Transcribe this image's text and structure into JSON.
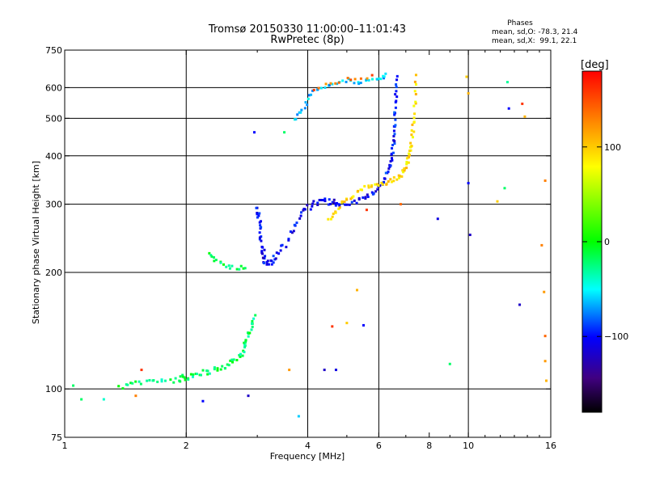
{
  "chart_data": {
    "type": "scatter",
    "title": "Tromsø 20150330 11:00:00–11:01:43",
    "subtitle": "RwPretec (8p)",
    "xlabel": "Frequency [MHz]",
    "ylabel": "Stationary phase Virtual Height [km]",
    "x_scale": "log",
    "y_scale": "log",
    "xlim": [
      1,
      16
    ],
    "ylim": [
      75,
      750
    ],
    "x_ticks": [
      1,
      2,
      4,
      6,
      8,
      10,
      16
    ],
    "x_tick_labels": [
      "1",
      "2",
      "4",
      "6",
      "8",
      "10",
      "16"
    ],
    "y_ticks": [
      75,
      100,
      200,
      300,
      400,
      500,
      600,
      750
    ],
    "y_tick_labels": [
      "75",
      "100",
      "200",
      "300",
      "400",
      "500",
      "600",
      "750"
    ],
    "grid_x": [
      2,
      4,
      6,
      10
    ],
    "grid_y": [
      100,
      200,
      300,
      400,
      500,
      600
    ],
    "phases": {
      "title": "Phases",
      "line_o": "mean, sd,O: -78.3, 21.4",
      "line_x": "mean, sd,X:  99.1, 22.1"
    },
    "colorbar": {
      "label": "[deg]",
      "range": [
        -180,
        180
      ],
      "ticks": [
        100,
        0,
        -100
      ],
      "tick_labels": [
        "100",
        "0",
        "−100"
      ],
      "colors": [
        "#ff0000",
        "#ff8000",
        "#ffff00",
        "#00ff00",
        "#00ffff",
        "#0000ff",
        "#400080",
        "#000000"
      ]
    },
    "traces": [
      {
        "name": "",
        "phase": -20,
        "jitter": 0.018,
        "density": 10,
        "points": [
          [
            1.35,
            101
          ],
          [
            1.6,
            104
          ],
          [
            1.9,
            106
          ],
          [
            2.05,
            108
          ],
          [
            2.3,
            111
          ],
          [
            2.55,
            115
          ],
          [
            2.75,
            124
          ],
          [
            2.85,
            137
          ],
          [
            2.95,
            155
          ]
        ]
      },
      {
        "name": "",
        "phase": -15,
        "jitter": 0.012,
        "density": 6,
        "points": [
          [
            2.25,
            225
          ],
          [
            2.4,
            212
          ],
          [
            2.6,
            206
          ],
          [
            2.85,
            206
          ]
        ]
      },
      {
        "name": "",
        "phase": -105,
        "jitter": 0.02,
        "density": 10,
        "points": [
          [
            3.0,
            300
          ],
          [
            3.05,
            265
          ],
          [
            3.1,
            225
          ],
          [
            3.15,
            210
          ],
          [
            3.3,
            215
          ],
          [
            3.6,
            245
          ],
          [
            3.9,
            290
          ],
          [
            4.3,
            305
          ],
          [
            4.8,
            302
          ]
        ]
      },
      {
        "name": "",
        "phase": -100,
        "jitter": 0.012,
        "density": 10,
        "points": [
          [
            4.5,
            300
          ],
          [
            5.2,
            303
          ],
          [
            5.8,
            320
          ],
          [
            6.2,
            345
          ],
          [
            6.45,
            390
          ],
          [
            6.55,
            440
          ],
          [
            6.6,
            530
          ],
          [
            6.65,
            645
          ]
        ]
      },
      {
        "name": "",
        "phase": 95,
        "jitter": 0.012,
        "density": 10,
        "points": [
          [
            4.5,
            270
          ],
          [
            4.9,
            305
          ],
          [
            5.5,
            330
          ],
          [
            6.2,
            338
          ],
          [
            6.8,
            355
          ],
          [
            7.05,
            380
          ],
          [
            7.2,
            420
          ],
          [
            7.35,
            500
          ],
          [
            7.4,
            640
          ]
        ]
      },
      {
        "name": "",
        "phase": -60,
        "jitter": 0.012,
        "density": 6,
        "points": [
          [
            3.7,
            495
          ],
          [
            3.9,
            530
          ],
          [
            4.1,
            580
          ],
          [
            4.5,
            605
          ],
          [
            5.0,
            625
          ],
          [
            5.5,
            620
          ],
          [
            6.0,
            630
          ],
          [
            6.3,
            650
          ]
        ]
      },
      {
        "name": "",
        "phase": 140,
        "jitter": 0.01,
        "density": 4,
        "points": [
          [
            4.1,
            590
          ],
          [
            4.6,
            615
          ],
          [
            5.2,
            635
          ],
          [
            5.8,
            640
          ]
        ]
      }
    ],
    "isolated_points": [
      {
        "x": 1.05,
        "y": 102,
        "phase": -20
      },
      {
        "x": 1.1,
        "y": 94,
        "phase": -20
      },
      {
        "x": 1.25,
        "y": 94,
        "phase": -40
      },
      {
        "x": 1.5,
        "y": 96,
        "phase": 130
      },
      {
        "x": 1.55,
        "y": 112,
        "phase": 160
      },
      {
        "x": 2.2,
        "y": 93,
        "phase": -100
      },
      {
        "x": 2.85,
        "y": 96,
        "phase": -120
      },
      {
        "x": 2.95,
        "y": 460,
        "phase": -100
      },
      {
        "x": 3.5,
        "y": 460,
        "phase": -20
      },
      {
        "x": 3.8,
        "y": 85,
        "phase": -60
      },
      {
        "x": 3.6,
        "y": 112,
        "phase": 120
      },
      {
        "x": 4.4,
        "y": 112,
        "phase": -120
      },
      {
        "x": 4.7,
        "y": 112,
        "phase": -110
      },
      {
        "x": 4.6,
        "y": 145,
        "phase": 160
      },
      {
        "x": 5.0,
        "y": 148,
        "phase": 100
      },
      {
        "x": 5.3,
        "y": 180,
        "phase": 110
      },
      {
        "x": 5.5,
        "y": 146,
        "phase": -100
      },
      {
        "x": 5.6,
        "y": 290,
        "phase": 160
      },
      {
        "x": 6.8,
        "y": 300,
        "phase": 140
      },
      {
        "x": 8.4,
        "y": 275,
        "phase": -110
      },
      {
        "x": 9.0,
        "y": 116,
        "phase": -20
      },
      {
        "x": 9.9,
        "y": 640,
        "phase": 100
      },
      {
        "x": 10.0,
        "y": 580,
        "phase": 110
      },
      {
        "x": 10.0,
        "y": 340,
        "phase": -100
      },
      {
        "x": 10.1,
        "y": 250,
        "phase": -120
      },
      {
        "x": 11.8,
        "y": 305,
        "phase": 100
      },
      {
        "x": 12.3,
        "y": 330,
        "phase": -20
      },
      {
        "x": 12.5,
        "y": 620,
        "phase": -30
      },
      {
        "x": 12.6,
        "y": 530,
        "phase": -100
      },
      {
        "x": 13.6,
        "y": 545,
        "phase": 160
      },
      {
        "x": 13.8,
        "y": 505,
        "phase": 110
      },
      {
        "x": 13.4,
        "y": 165,
        "phase": -120
      },
      {
        "x": 15.2,
        "y": 235,
        "phase": 130
      },
      {
        "x": 15.5,
        "y": 345,
        "phase": 130
      },
      {
        "x": 15.4,
        "y": 178,
        "phase": 120
      },
      {
        "x": 15.5,
        "y": 137,
        "phase": 140
      },
      {
        "x": 15.5,
        "y": 118,
        "phase": 120
      },
      {
        "x": 15.6,
        "y": 105,
        "phase": 110
      }
    ]
  }
}
